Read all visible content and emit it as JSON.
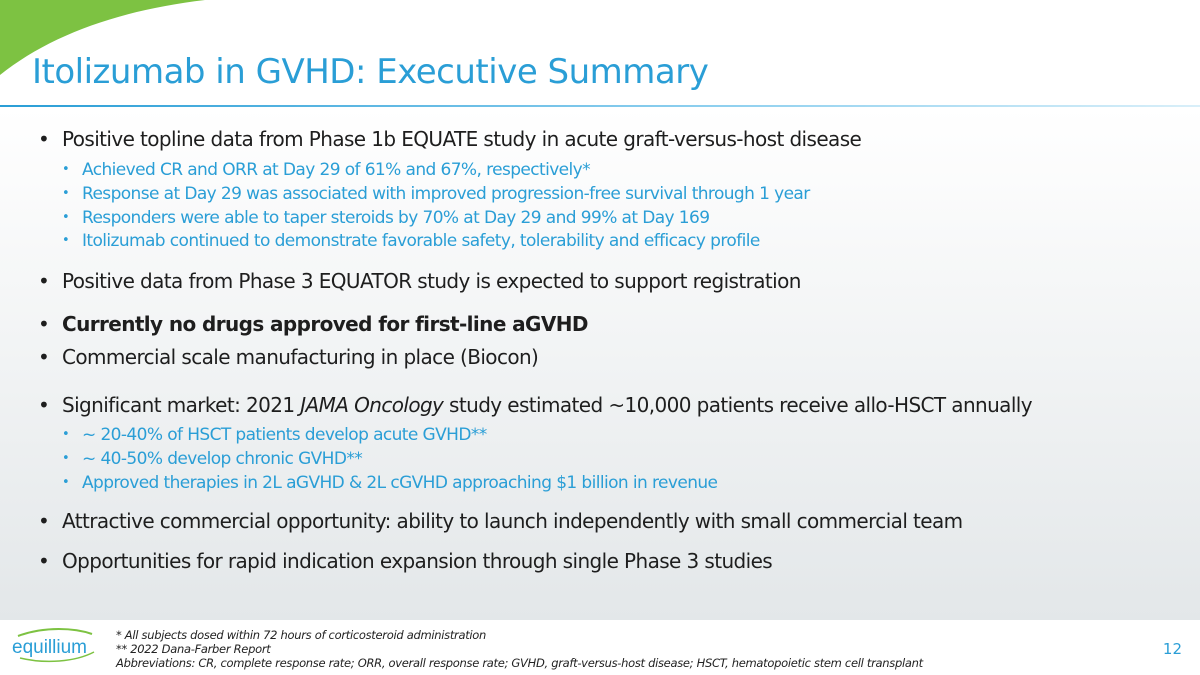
{
  "title": "Itolizumab in GVHD: Executive Summary",
  "bullets": [
    {
      "text": "Positive topline data from Phase 1b EQUATE study in acute graft-versus-host disease",
      "sub": [
        "Achieved CR and ORR at Day 29 of 61% and 67%, respectively*",
        "Response at Day 29 was associated with improved progression-free survival through 1 year",
        "Responders were able to taper steroids by 70% at Day 29 and 99% at Day 169",
        "Itolizumab continued to demonstrate favorable safety, tolerability and efficacy profile"
      ]
    },
    {
      "text": "Positive data from Phase 3 EQUATOR study is expected to support registration"
    },
    {
      "text": "Currently no drugs approved for first-line aGVHD"
    },
    {
      "text": "Commercial scale manufacturing in place (Biocon)"
    },
    {
      "text_a": "Significant market: 2021 ",
      "text_em": "JAMA Oncology",
      "text_b": " study estimated ~10,000 patients receive allo-HSCT annually",
      "sub": [
        "~ 20-40% of HSCT patients develop acute GVHD**",
        "~ 40-50% develop chronic GVHD**",
        "Approved therapies in 2L aGVHD & 2L cGVHD approaching $1 billion in revenue"
      ]
    },
    {
      "text": "Attractive commercial opportunity: ability to launch independently with small commercial team"
    },
    {
      "text": "Opportunities for rapid indication expansion through single Phase 3 studies"
    }
  ],
  "bullet_glyph": "•",
  "footnotes": [
    "* All subjects dosed within 72 hours of corticosteroid administration",
    "** 2022 Dana-Farber Report",
    "Abbreviations: CR, complete response rate; ORR, overall response rate; GVHD, graft-versus-host disease; HSCT, hematopoietic stem cell transplant"
  ],
  "logo_text": "equillium",
  "page_number": "12",
  "colors": {
    "accent": "#2a9ed6",
    "green": "#7dc242"
  }
}
